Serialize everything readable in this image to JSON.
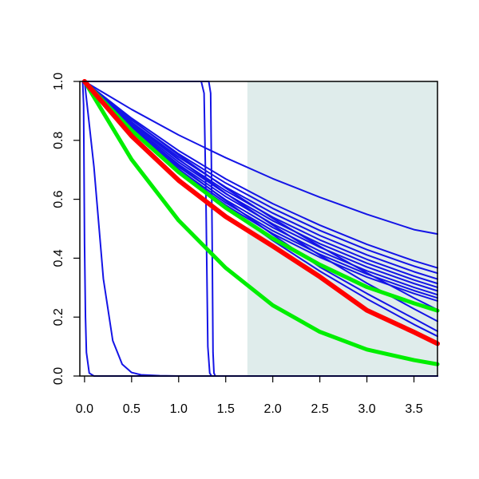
{
  "chart_data": {
    "type": "line",
    "title": "",
    "xlabel": "",
    "ylabel": "",
    "xlim": [
      -0.05,
      3.75
    ],
    "ylim": [
      0,
      1
    ],
    "x_ticks": [
      0.0,
      0.5,
      1.0,
      1.5,
      2.0,
      2.5,
      3.0,
      3.5
    ],
    "y_ticks": [
      0.0,
      0.2,
      0.4,
      0.6,
      0.8,
      1.0
    ],
    "x_tick_labels": [
      "0.0",
      "0.5",
      "1.0",
      "1.5",
      "2.0",
      "2.5",
      "3.0",
      "3.5"
    ],
    "y_tick_labels": [
      "0.0",
      "0.2",
      "0.4",
      "0.6",
      "0.8",
      "1.0"
    ],
    "shaded_region": {
      "x_start": 1.73,
      "x_end": 3.75,
      "color": "#dfeceb"
    },
    "grid": false,
    "legend": "none",
    "colors": {
      "blue": "#1414e6",
      "red": "#ff0000",
      "green": "#00ee00"
    },
    "series": [
      {
        "color": "blue",
        "width": 2,
        "x": [
          0,
          0.5,
          1,
          1.5,
          2,
          2.5,
          3,
          3.5,
          3.75
        ],
        "y": [
          1,
          0.905,
          0.818,
          0.741,
          0.67,
          0.607,
          0.549,
          0.497,
          0.482
        ]
      },
      {
        "color": "blue",
        "width": 2,
        "x": [
          0,
          0.5,
          1,
          1.5,
          2,
          2.5,
          3,
          3.5,
          3.75
        ],
        "y": [
          1,
          0.875,
          0.765,
          0.669,
          0.585,
          0.512,
          0.447,
          0.391,
          0.367
        ]
      },
      {
        "color": "blue",
        "width": 2,
        "x": [
          0,
          0.5,
          1,
          1.5,
          2,
          2.5,
          3,
          3.5,
          3.75
        ],
        "y": [
          1,
          0.869,
          0.754,
          0.655,
          0.569,
          0.494,
          0.429,
          0.373,
          0.349
        ]
      },
      {
        "color": "blue",
        "width": 2,
        "x": [
          0,
          0.5,
          1,
          1.5,
          2,
          2.5,
          3,
          3.5,
          3.75
        ],
        "y": [
          1,
          0.862,
          0.743,
          0.641,
          0.553,
          0.477,
          0.411,
          0.354,
          0.329
        ]
      },
      {
        "color": "blue",
        "width": 2,
        "x": [
          0,
          0.5,
          1,
          1.5,
          2,
          2.5,
          3,
          3.5,
          3.75
        ],
        "y": [
          1,
          0.857,
          0.734,
          0.629,
          0.539,
          0.462,
          0.396,
          0.339,
          0.314
        ]
      },
      {
        "color": "blue",
        "width": 2,
        "x": [
          0,
          0.5,
          1,
          1.5,
          2,
          2.5,
          3,
          3.5,
          3.75
        ],
        "y": [
          1,
          0.852,
          0.726,
          0.619,
          0.527,
          0.449,
          0.383,
          0.326,
          0.301
        ]
      },
      {
        "color": "blue",
        "width": 2,
        "x": [
          0,
          0.5,
          1,
          1.5,
          2,
          2.5,
          3,
          3.5,
          3.75
        ],
        "y": [
          1,
          0.847,
          0.718,
          0.609,
          0.516,
          0.437,
          0.37,
          0.314,
          0.289
        ]
      },
      {
        "color": "blue",
        "width": 2,
        "x": [
          0,
          0.5,
          1,
          1.5,
          2,
          2.5,
          3,
          3.5,
          3.75
        ],
        "y": [
          1,
          0.842,
          0.71,
          0.598,
          0.504,
          0.424,
          0.357,
          0.301,
          0.276
        ]
      },
      {
        "color": "blue",
        "width": 2,
        "x": [
          0,
          0.5,
          1,
          1.5,
          2,
          2.5,
          3,
          3.5,
          3.75
        ],
        "y": [
          1,
          0.838,
          0.702,
          0.588,
          0.493,
          0.413,
          0.346,
          0.29,
          0.265
        ]
      },
      {
        "color": "blue",
        "width": 2,
        "x": [
          0,
          0.5,
          1,
          1.5,
          2,
          2.5,
          3,
          3.5,
          3.75
        ],
        "y": [
          1,
          0.834,
          0.695,
          0.58,
          0.483,
          0.403,
          0.336,
          0.28,
          0.255
        ]
      },
      {
        "color": "blue",
        "width": 2,
        "x": [
          0,
          0.5,
          1,
          1.5,
          2,
          2.5,
          3,
          3.5,
          3.75
        ],
        "y": [
          1,
          0.843,
          0.703,
          0.575,
          0.46,
          0.356,
          0.262,
          0.175,
          0.135
        ]
      },
      {
        "color": "blue",
        "width": 2,
        "x": [
          0,
          0.5,
          1,
          1.5,
          2,
          2.5,
          3,
          3.5,
          3.75
        ],
        "y": [
          1,
          0.85,
          0.715,
          0.595,
          0.48,
          0.37,
          0.28,
          0.195,
          0.152
        ]
      },
      {
        "color": "blue",
        "width": 2,
        "x": [
          0,
          0.5,
          1,
          1.5,
          2,
          2.5,
          3,
          3.5,
          3.75
        ],
        "y": [
          1,
          0.862,
          0.736,
          0.62,
          0.512,
          0.41,
          0.315,
          0.228,
          0.186
        ]
      },
      {
        "color": "blue",
        "width": 2,
        "x": [
          0,
          0.5,
          1,
          1.5,
          2,
          2.5,
          3,
          3.5,
          3.75
        ],
        "y": [
          1,
          0.87,
          0.75,
          0.638,
          0.535,
          0.44,
          0.35,
          0.265,
          0.225
        ]
      },
      {
        "color": "blue",
        "width": 2,
        "x": [
          0,
          0.1,
          0.2,
          0.3,
          0.4,
          0.5,
          0.6,
          0.8,
          1.0,
          3.75
        ],
        "y": [
          1,
          0.71,
          0.33,
          0.12,
          0.04,
          0.012,
          0.004,
          0.001,
          0,
          0
        ]
      },
      {
        "color": "blue",
        "width": 2,
        "x": [
          -0.02,
          -0.01,
          0,
          0.01,
          0.02,
          0.05,
          0.1,
          3.75
        ],
        "y": [
          1,
          0.92,
          0.45,
          0.2,
          0.08,
          0.01,
          0,
          0
        ]
      },
      {
        "color": "blue",
        "width": 2,
        "x": [
          0,
          1.24,
          1.27,
          1.29,
          1.31,
          1.33,
          1.35,
          3.75
        ],
        "y": [
          1,
          1,
          0.96,
          0.6,
          0.1,
          0.01,
          0,
          0
        ]
      },
      {
        "color": "blue",
        "width": 2,
        "x": [
          0,
          1.32,
          1.34,
          1.355,
          1.365,
          1.375,
          1.39,
          3.75
        ],
        "y": [
          1,
          1,
          0.96,
          0.5,
          0.08,
          0.01,
          0,
          0
        ]
      },
      {
        "color": "red",
        "width": 6,
        "x": [
          0,
          0.5,
          1,
          1.5,
          2,
          2.5,
          3,
          3.5,
          3.75
        ],
        "y": [
          1,
          0.815,
          0.664,
          0.541,
          0.441,
          0.337,
          0.223,
          0.149,
          0.11
        ]
      },
      {
        "color": "green",
        "width": 5,
        "x": [
          0,
          0.5,
          1,
          1.5,
          2,
          2.5,
          3,
          3.5,
          3.75
        ],
        "y": [
          1,
          0.834,
          0.692,
          0.571,
          0.467,
          0.378,
          0.302,
          0.247,
          0.222
        ]
      },
      {
        "color": "green",
        "width": 5,
        "x": [
          0,
          0.5,
          1,
          1.5,
          2,
          2.5,
          3,
          3.5,
          3.75
        ],
        "y": [
          1,
          0.735,
          0.528,
          0.367,
          0.24,
          0.15,
          0.09,
          0.054,
          0.04
        ]
      }
    ]
  }
}
